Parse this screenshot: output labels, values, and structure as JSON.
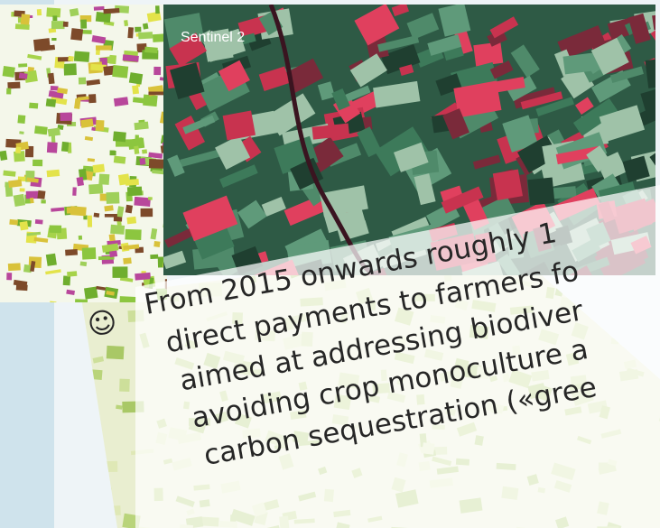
{
  "image_label": "Sentinel 2",
  "bullet": "☺",
  "text_lines": [
    "From 2015 onwards roughly 1",
    "direct payments to farmers fo",
    "aimed at addressing biodiver",
    "avoiding crop monoculture a",
    "carbon sequestration («gree"
  ]
}
